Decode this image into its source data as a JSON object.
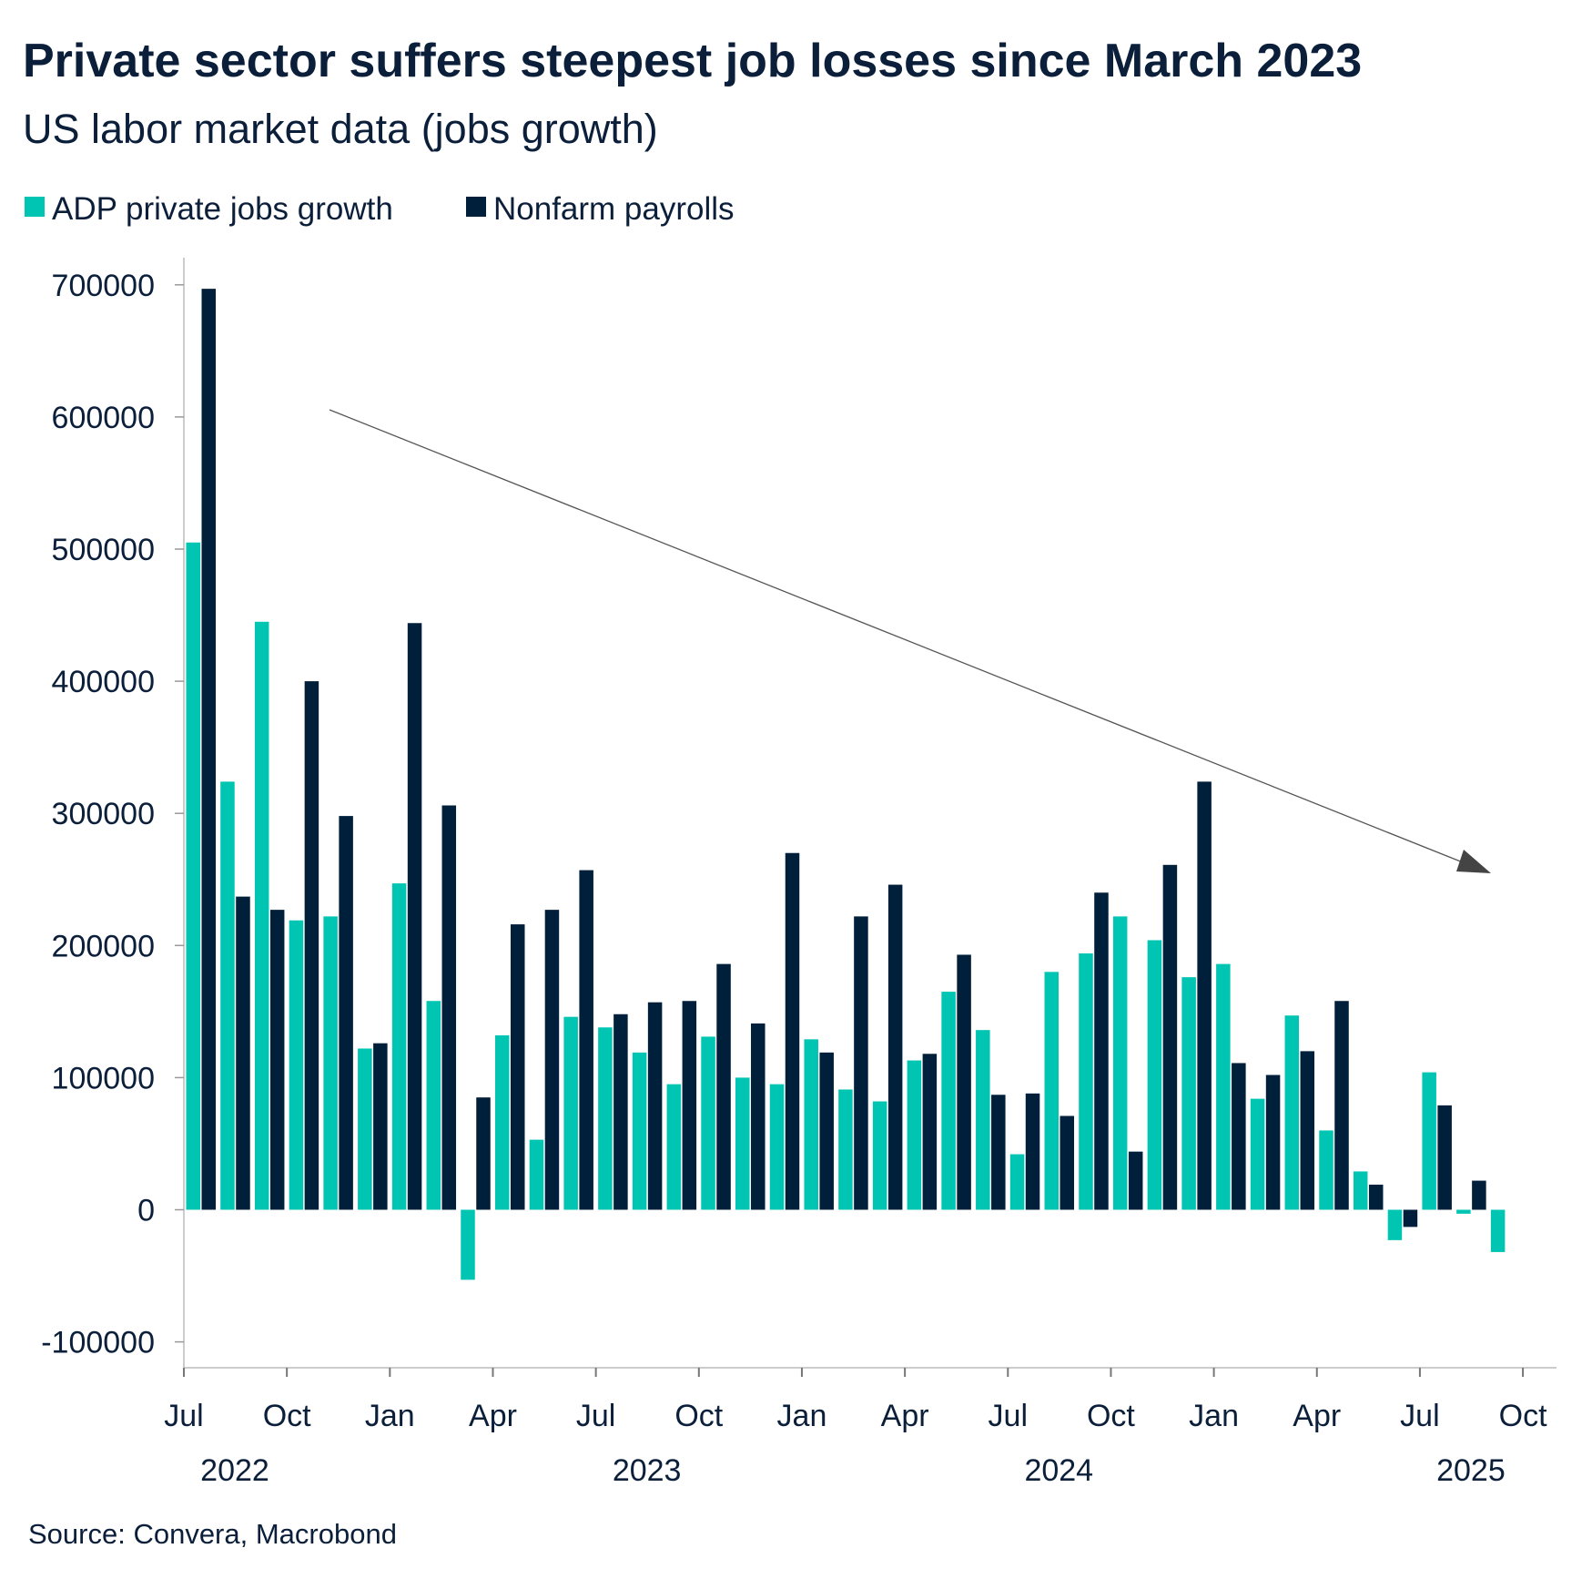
{
  "chart_data": {
    "type": "bar",
    "title": "Private sector suffers steepest job losses since March 2023",
    "subtitle": "US labor market data (jobs growth)",
    "source": "Source: Convera, Macrobond",
    "legend_placement": "top-left",
    "grid": false,
    "ylim": [
      -100000,
      700000
    ],
    "yticks": [
      -100000,
      0,
      100000,
      200000,
      300000,
      400000,
      500000,
      600000,
      700000
    ],
    "ytick_labels": [
      "-100000",
      "0",
      "100000",
      "200000",
      "300000",
      "400000",
      "500000",
      "600000",
      "700000"
    ],
    "xticks": [
      {
        "label": "Jul",
        "year": "2022"
      },
      {
        "label": "Oct",
        "year": ""
      },
      {
        "label": "Jan",
        "year": ""
      },
      {
        "label": "Apr",
        "year": ""
      },
      {
        "label": "Jul",
        "year": "2023"
      },
      {
        "label": "Oct",
        "year": ""
      },
      {
        "label": "Jan",
        "year": ""
      },
      {
        "label": "Apr",
        "year": ""
      },
      {
        "label": "Jul",
        "year": "2024"
      },
      {
        "label": "Oct",
        "year": ""
      },
      {
        "label": "Jan",
        "year": ""
      },
      {
        "label": "Apr",
        "year": ""
      },
      {
        "label": "Jul",
        "year": "2025"
      },
      {
        "label": "Oct",
        "year": ""
      }
    ],
    "categories": [
      "2022-07",
      "2022-08",
      "2022-09",
      "2022-10",
      "2022-11",
      "2022-12",
      "2023-01",
      "2023-02",
      "2023-03",
      "2023-04",
      "2023-05",
      "2023-06",
      "2023-07",
      "2023-08",
      "2023-09",
      "2023-10",
      "2023-11",
      "2023-12",
      "2024-01",
      "2024-02",
      "2024-03",
      "2024-04",
      "2024-05",
      "2024-06",
      "2024-07",
      "2024-08",
      "2024-09",
      "2024-10",
      "2024-11",
      "2024-12",
      "2025-01",
      "2025-02",
      "2025-03",
      "2025-04",
      "2025-05",
      "2025-06",
      "2025-07",
      "2025-08",
      "2025-09"
    ],
    "series": [
      {
        "name": "ADP private jobs growth",
        "color": "#00c5b3",
        "values": [
          505000,
          324000,
          445000,
          219000,
          222000,
          122000,
          247000,
          158000,
          -53000,
          132000,
          53000,
          146000,
          138000,
          119000,
          95000,
          131000,
          100000,
          95000,
          129000,
          91000,
          82000,
          113000,
          165000,
          136000,
          42000,
          180000,
          194000,
          222000,
          204000,
          176000,
          186000,
          84000,
          147000,
          60000,
          29000,
          -23000,
          104000,
          -3000,
          -32000
        ]
      },
      {
        "name": "Nonfarm payrolls",
        "color": "#001f3a",
        "values": [
          697000,
          237000,
          227000,
          400000,
          298000,
          126000,
          444000,
          306000,
          85000,
          216000,
          227000,
          257000,
          148000,
          157000,
          158000,
          186000,
          141000,
          270000,
          119000,
          222000,
          246000,
          118000,
          193000,
          87000,
          88000,
          71000,
          240000,
          44000,
          261000,
          324000,
          111000,
          102000,
          120000,
          158000,
          19000,
          -13000,
          79000,
          22000,
          null
        ]
      }
    ],
    "annotations": [
      {
        "type": "arrow",
        "direction": "downward trend"
      }
    ]
  }
}
